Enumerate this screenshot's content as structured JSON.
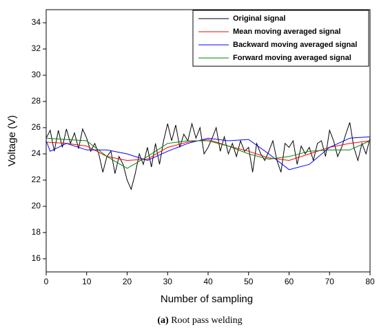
{
  "chart_data": {
    "type": "line",
    "xlabel": "Number of sampling",
    "ylabel": "Voltage (V)",
    "caption_label": "(a)",
    "caption": "Root pass welding",
    "xlim": [
      0,
      80
    ],
    "xticks": [
      0,
      10,
      20,
      30,
      40,
      50,
      60,
      70,
      80
    ],
    "ylim": [
      15,
      35
    ],
    "yticks": [
      16,
      18,
      20,
      22,
      24,
      26,
      28,
      30,
      32,
      34
    ],
    "legend": "upper right",
    "series": [
      {
        "name": "Original signal",
        "color": "#000000",
        "x": [
          0,
          1,
          2,
          3,
          4,
          5,
          6,
          7,
          8,
          9,
          10,
          11,
          12,
          13,
          14,
          15,
          16,
          17,
          18,
          19,
          20,
          21,
          22,
          23,
          24,
          25,
          26,
          27,
          28,
          29,
          30,
          31,
          32,
          33,
          34,
          35,
          36,
          37,
          38,
          39,
          40,
          41,
          42,
          43,
          44,
          45,
          46,
          47,
          48,
          49,
          50,
          51,
          52,
          53,
          54,
          55,
          56,
          57,
          58,
          59,
          60,
          61,
          62,
          63,
          64,
          65,
          66,
          67,
          68,
          69,
          70,
          71,
          72,
          73,
          74,
          75,
          76,
          77,
          78,
          79,
          80
        ],
        "values": [
          25.2,
          25.8,
          24.2,
          25.8,
          24.5,
          25.9,
          24.8,
          25.6,
          24.4,
          25.9,
          25.2,
          24.2,
          24.8,
          24.0,
          22.6,
          23.8,
          24.2,
          22.5,
          23.8,
          23.2,
          22.0,
          21.3,
          22.5,
          24.0,
          23.2,
          24.5,
          23.0,
          24.8,
          23.2,
          25.0,
          26.3,
          25.0,
          26.2,
          24.5,
          25.5,
          25.0,
          26.3,
          25.2,
          26.0,
          24.0,
          24.5,
          25.2,
          26.0,
          24.2,
          25.3,
          24.0,
          24.8,
          23.8,
          25.0,
          24.2,
          24.5,
          22.6,
          24.8,
          24.0,
          23.5,
          24.2,
          25.0,
          23.5,
          22.6,
          24.8,
          24.5,
          25.0,
          23.2,
          24.6,
          24.0,
          24.5,
          23.5,
          24.8,
          25.0,
          23.8,
          25.8,
          25.0,
          23.8,
          24.5,
          25.5,
          26.4,
          24.5,
          23.5,
          24.8,
          24.0,
          25.2
        ]
      },
      {
        "name": "Mean moving averaged signal",
        "color": "#ff0000",
        "x": [
          0,
          5,
          10,
          15,
          20,
          25,
          30,
          35,
          40,
          45,
          50,
          55,
          60,
          65,
          70,
          75,
          80
        ],
        "values": [
          24.9,
          24.8,
          24.6,
          23.8,
          23.5,
          23.6,
          24.5,
          24.9,
          25.1,
          24.6,
          24.2,
          23.7,
          23.5,
          24.0,
          24.5,
          24.8,
          25.0
        ]
      },
      {
        "name": "Backward moving averaged signal",
        "color": "#0000ff",
        "x": [
          0,
          1,
          5,
          10,
          15,
          20,
          25,
          30,
          35,
          40,
          45,
          50,
          55,
          60,
          65,
          70,
          75,
          80
        ],
        "values": [
          25.0,
          24.2,
          24.8,
          24.3,
          24.3,
          24.0,
          23.5,
          24.2,
          24.8,
          25.2,
          25.0,
          25.1,
          24.0,
          22.8,
          23.2,
          24.5,
          25.2,
          25.3
        ]
      },
      {
        "name": "Forward moving averaged signal",
        "color": "#008000",
        "x": [
          0,
          5,
          10,
          15,
          20,
          25,
          30,
          35,
          40,
          45,
          50,
          55,
          60,
          65,
          70,
          75,
          80
        ],
        "values": [
          25.2,
          25.1,
          25.0,
          23.8,
          22.9,
          23.8,
          24.8,
          25.0,
          25.0,
          24.6,
          24.0,
          23.6,
          23.8,
          24.2,
          24.3,
          24.3,
          25.0
        ]
      }
    ]
  }
}
